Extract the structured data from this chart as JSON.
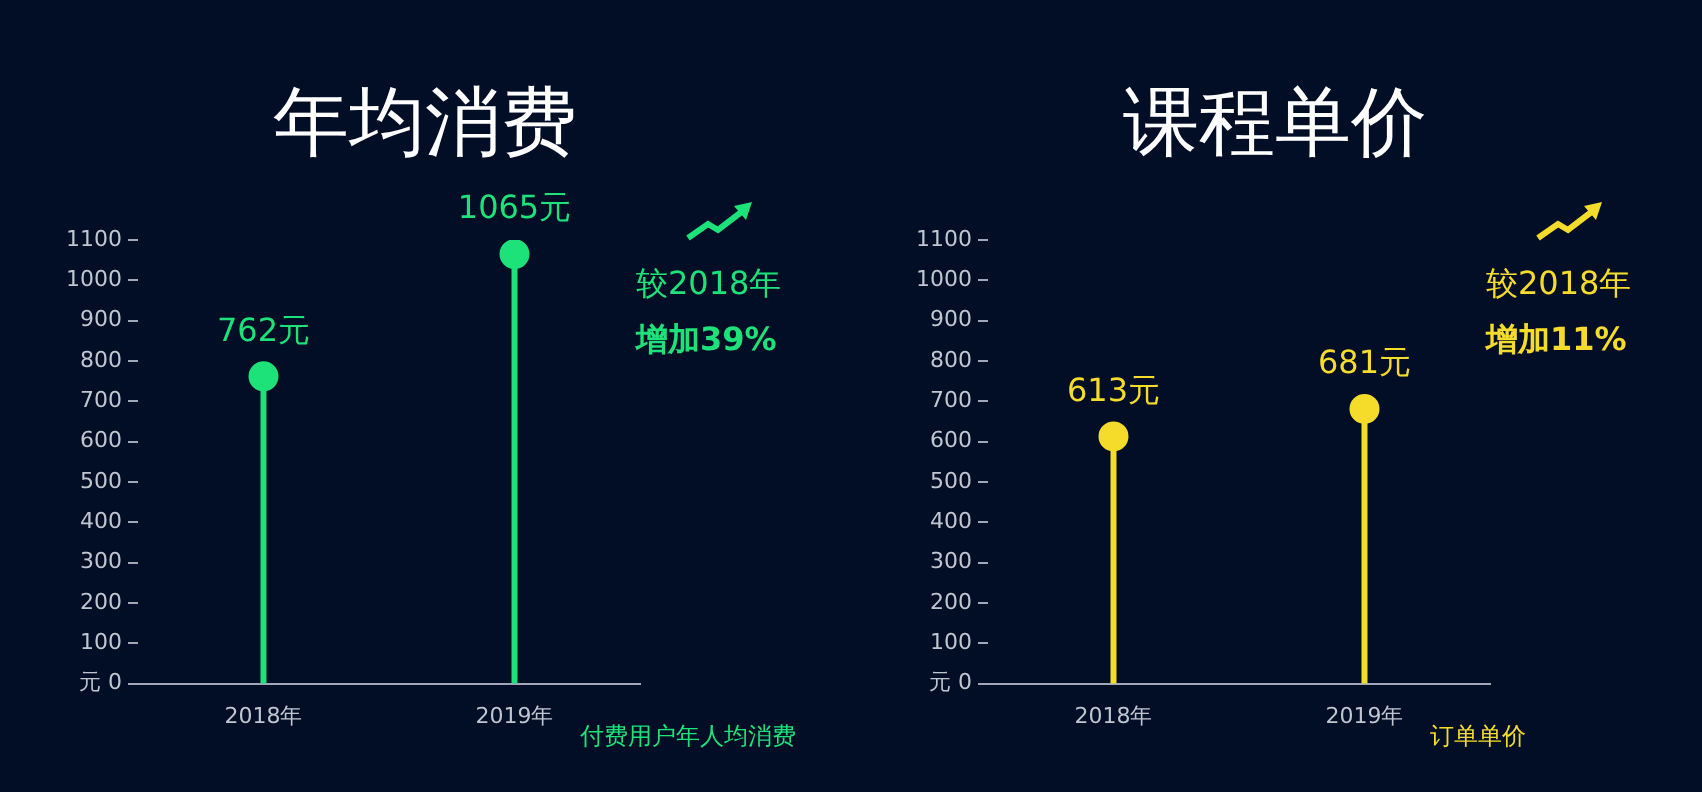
{
  "chart_data": [
    {
      "type": "lollipop",
      "title": "年均消费",
      "xlabel": "付费用户年人均消费",
      "categories": [
        "2018年",
        "2019年"
      ],
      "values": [
        762,
        1065
      ],
      "value_labels": [
        "762元",
        "1065元"
      ],
      "color": "#1de27a",
      "ylim": [
        0,
        1100
      ],
      "yticks": [
        {
          "value": 0,
          "label": "元 0"
        },
        100,
        200,
        300,
        400,
        500,
        600,
        700,
        800,
        900,
        1000,
        1100
      ],
      "grid": false,
      "annotations": [
        "较2018年",
        "增加39%"
      ]
    },
    {
      "type": "lollipop",
      "title": "课程单价",
      "xlabel": "订单单价",
      "categories": [
        "2018年",
        "2019年"
      ],
      "values": [
        613,
        681
      ],
      "value_labels": [
        "613元",
        "681元"
      ],
      "color": "#f5dc2a",
      "ylim": [
        0,
        1100
      ],
      "yticks": [
        {
          "value": 0,
          "label": "元 0"
        },
        100,
        200,
        300,
        400,
        500,
        600,
        700,
        800,
        900,
        1000,
        1100
      ],
      "grid": false,
      "annotations": [
        "较2018年",
        "增加11%"
      ]
    }
  ]
}
